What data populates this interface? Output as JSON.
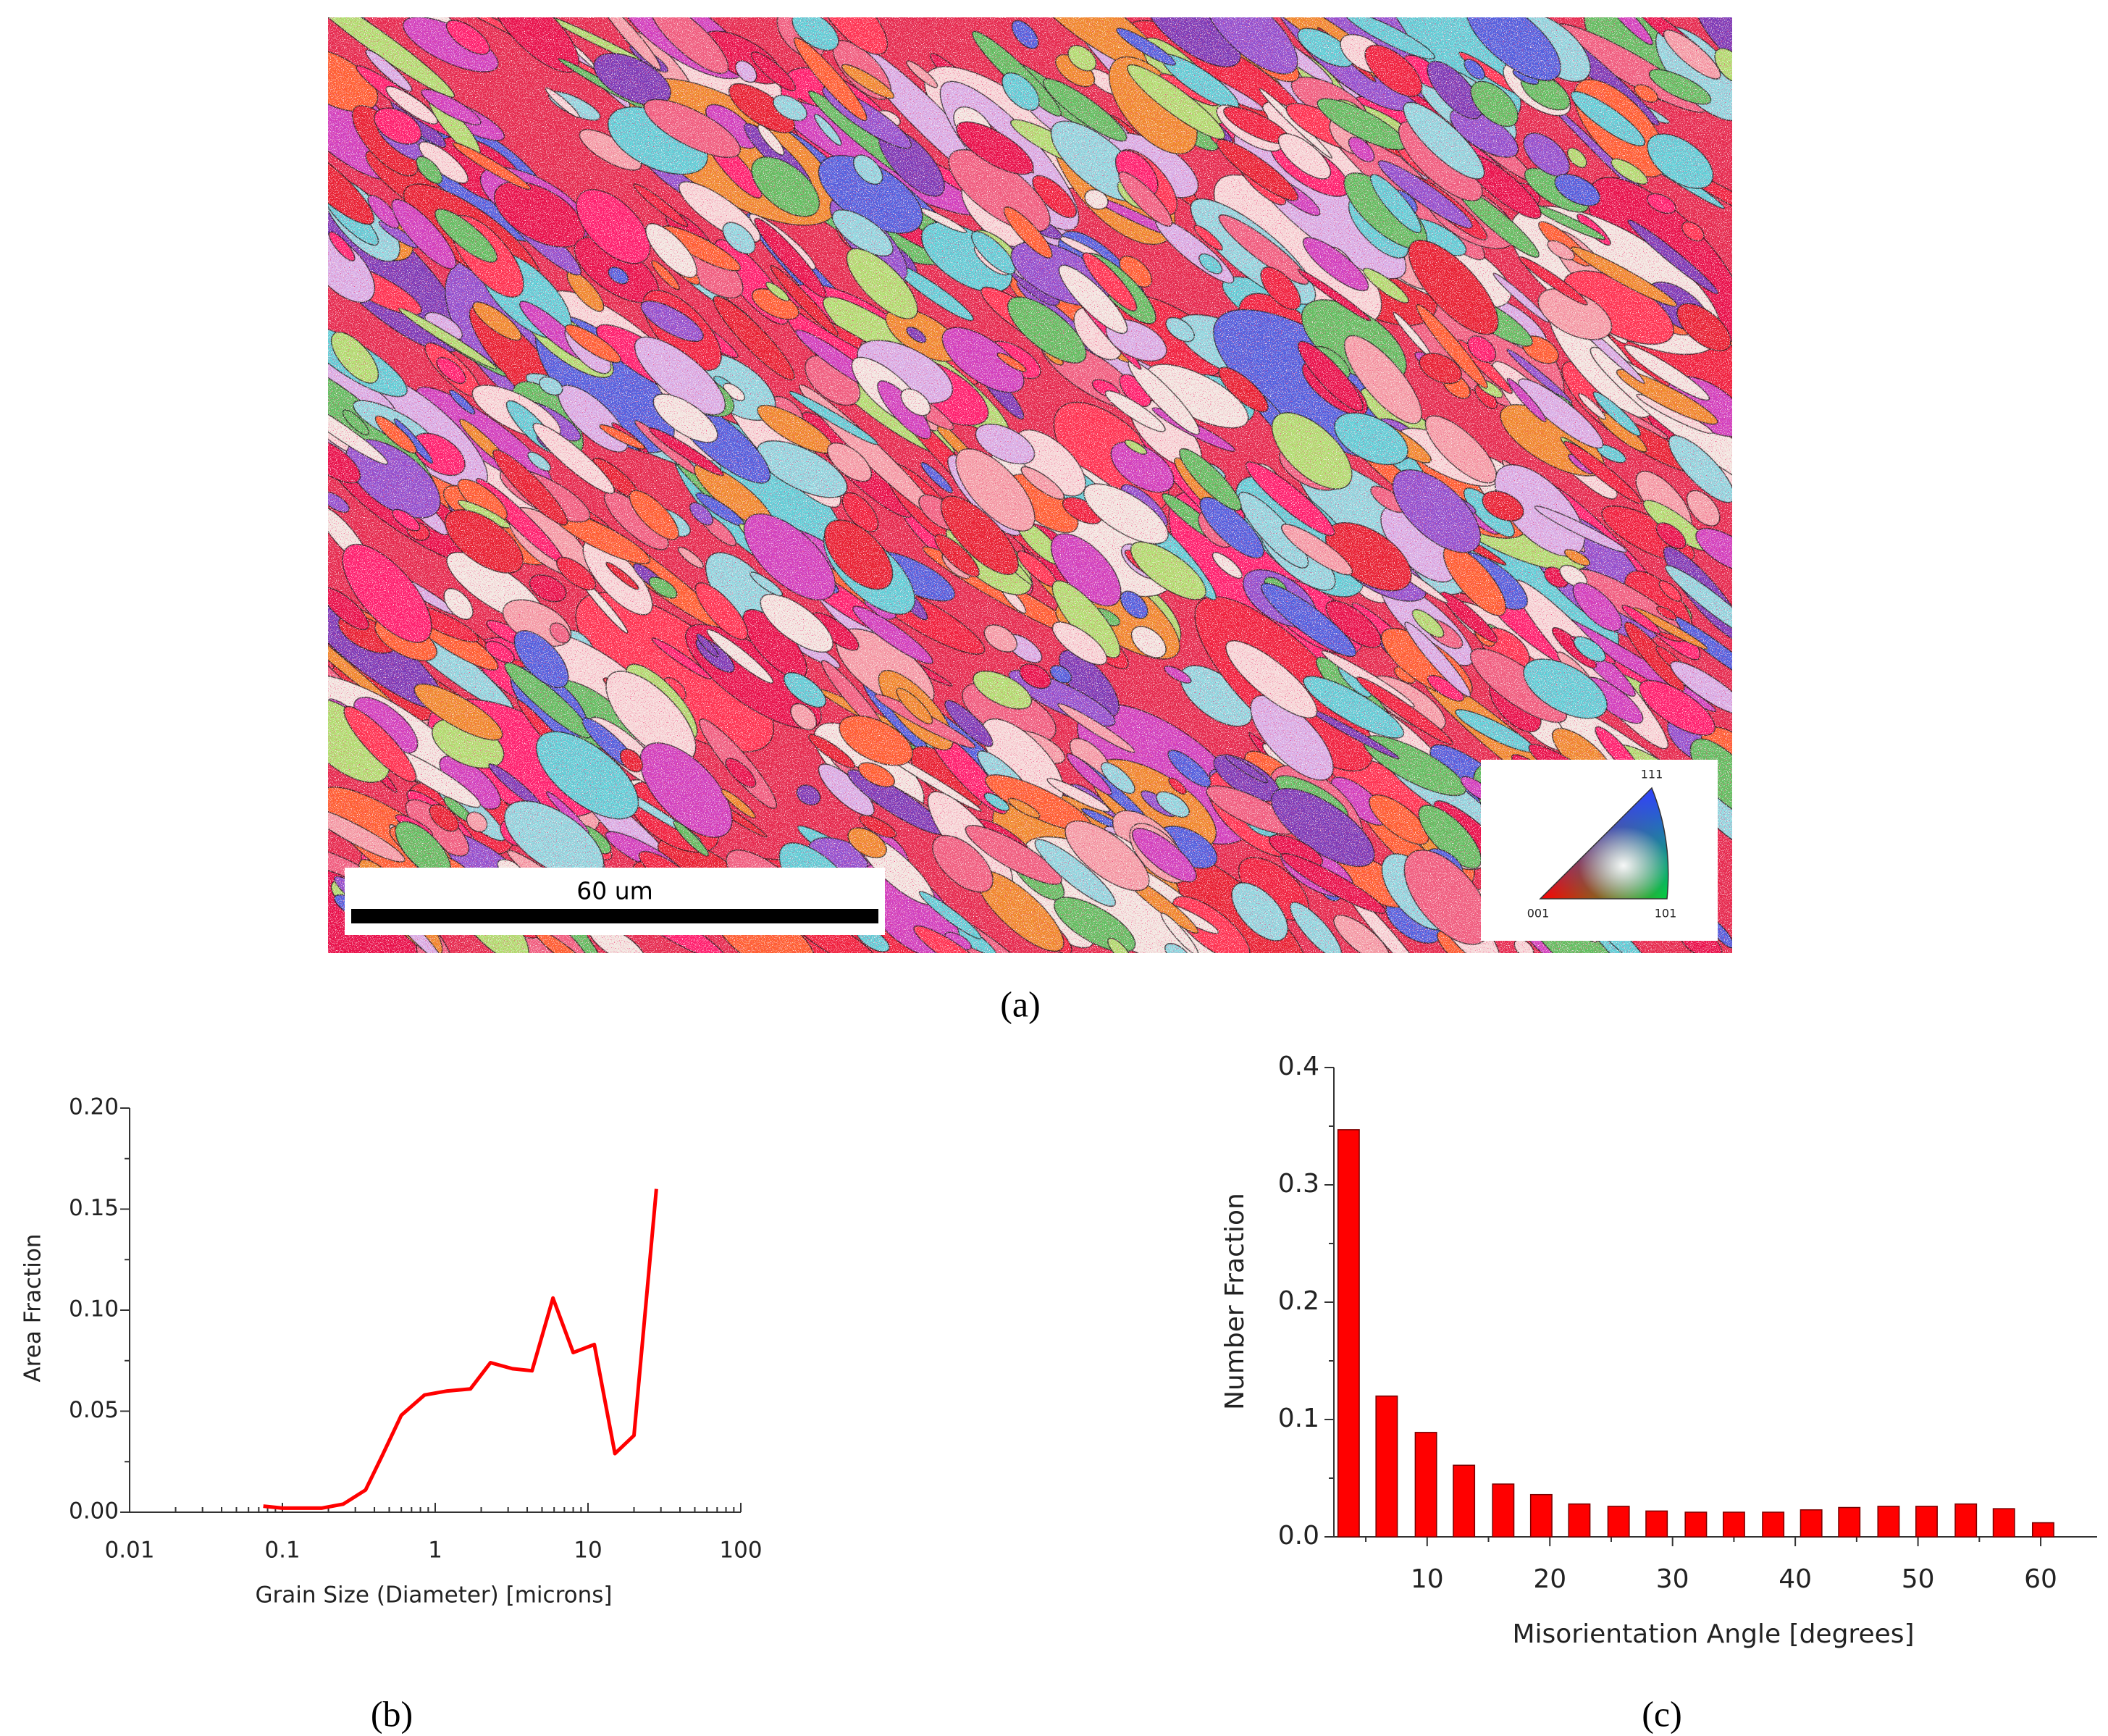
{
  "panel_a": {
    "scale_bar_label": "60 um",
    "ipf_labels": [
      "111",
      "001",
      "101"
    ],
    "caption": "(a)"
  },
  "chart_data": [
    {
      "type": "line",
      "caption": "(b)",
      "xlabel": "Grain Size (Diameter) [microns]",
      "ylabel": "Area Fraction",
      "x_scale": "log",
      "minor_ticks": true,
      "color": "#ff0000",
      "x": [
        0.075,
        0.1,
        0.13,
        0.18,
        0.25,
        0.35,
        0.45,
        0.6,
        0.85,
        1.2,
        1.7,
        2.3,
        3.2,
        4.3,
        5.9,
        8,
        11,
        15,
        20,
        28
      ],
      "values": [
        0.003,
        0.002,
        0.002,
        0.002,
        0.004,
        0.011,
        0.028,
        0.048,
        0.058,
        0.06,
        0.061,
        0.074,
        0.071,
        0.07,
        0.106,
        0.079,
        0.083,
        0.029,
        0.038,
        0.16
      ],
      "xlim": [
        0.01,
        100
      ],
      "ylim": [
        0,
        0.2
      ],
      "xticks": [
        0.01,
        0.1,
        1,
        10,
        100
      ],
      "yticks": [
        {
          "value": 0,
          "label": "0.00"
        },
        0.05,
        {
          "value": 0.1,
          "label": "0.10"
        },
        0.15,
        {
          "value": 0.2,
          "label": "0.20"
        }
      ]
    },
    {
      "type": "bar",
      "caption": "(c)",
      "xlabel": "Misorientation Angle [degrees]",
      "ylabel": "Number Fraction",
      "minor_ticks": true,
      "color": "#ff0000",
      "x": [
        3.6,
        6.7,
        9.9,
        13.0,
        16.2,
        19.3,
        22.4,
        25.6,
        28.7,
        31.9,
        35.0,
        38.2,
        41.3,
        44.4,
        47.6,
        50.7,
        53.9,
        57.0,
        60.2
      ],
      "values": [
        0.347,
        0.12,
        0.089,
        0.061,
        0.045,
        0.036,
        0.028,
        0.026,
        0.022,
        0.021,
        0.021,
        0.021,
        0.023,
        0.025,
        0.026,
        0.026,
        0.028,
        0.024,
        0.012
      ],
      "xlim": [
        2.4,
        64.6
      ],
      "ylim": [
        0,
        0.4
      ],
      "xticks": [
        10,
        20,
        30,
        40,
        50,
        60
      ],
      "yticks": [
        {
          "value": 0,
          "label": "0.0"
        },
        0.1,
        0.2,
        0.3,
        0.4
      ]
    }
  ]
}
